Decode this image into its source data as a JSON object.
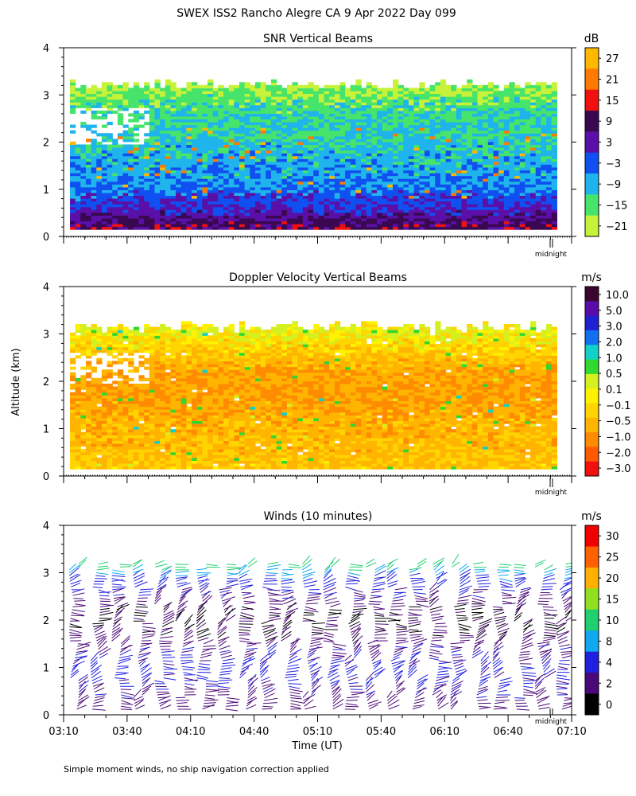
{
  "header": {
    "title": "SWEX ISS2 Rancho Alegre CA   9 Apr 2022 Day 099"
  },
  "footer": {
    "note": "Simple moment winds, no ship navigation correction applied"
  },
  "axes": {
    "ylabel": "Altitude (km)",
    "xlabel": "Time (UT)",
    "y_ticks": [
      "0",
      "1",
      "2",
      "3",
      "4"
    ],
    "x_ticks": [
      "03:10",
      "03:40",
      "04:10",
      "04:40",
      "05:10",
      "05:40",
      "06:10",
      "06:40",
      "07:10"
    ],
    "midnight_label": "midnight"
  },
  "colors": {
    "snr_scale": [
      "#c8f23a",
      "#46e46a",
      "#20b4ec",
      "#1050f0",
      "#5a10a8",
      "#3a0850",
      "#f01010",
      "#ff7a00",
      "#ffb800"
    ],
    "vel_scale": [
      "#f01010",
      "#ff5a00",
      "#ff8c00",
      "#ffb400",
      "#ffd400",
      "#fff200",
      "#d4f020",
      "#30d830",
      "#10d0c8",
      "#1070f0",
      "#2020d0",
      "#5a0ca8",
      "#3a0630"
    ],
    "wind_scale": [
      "#000000",
      "#4a0878",
      "#2020e0",
      "#10a8f0",
      "#20d070",
      "#90e020",
      "#ffb000",
      "#ff6000",
      "#f00000"
    ]
  },
  "chart_data": [
    {
      "type": "heatmap",
      "title": "SNR Vertical Beams",
      "units": "dB",
      "xlabel": "",
      "ylabel": "Altitude (km)",
      "xlim": [
        "03:10",
        "07:10"
      ],
      "ylim": [
        0,
        4
      ],
      "colorbar_ticks": [
        "27",
        "21",
        "15",
        "9",
        "3",
        "−3",
        "−9",
        "−15",
        "−21"
      ],
      "profile": {
        "altitude_km": [
          0.2,
          0.4,
          0.6,
          0.8,
          1.0,
          1.2,
          1.4,
          1.6,
          1.8,
          2.0,
          2.2,
          2.4,
          2.6,
          2.8,
          3.0,
          3.2
        ],
        "snr_db": [
          9,
          5,
          0,
          -2,
          -5,
          -7,
          -8,
          -9,
          -10,
          -11,
          -11,
          -12,
          -13,
          -15,
          -17,
          -20
        ]
      },
      "echo_top_km": 3.2
    },
    {
      "type": "heatmap",
      "title": "Doppler Velocity Vertical Beams",
      "units": "m/s",
      "xlabel": "",
      "ylabel": "Altitude (km)",
      "xlim": [
        "03:10",
        "07:10"
      ],
      "ylim": [
        0,
        4
      ],
      "colorbar_ticks": [
        "10.0",
        "5.0",
        "3.0",
        "2.0",
        "1.0",
        "0.5",
        "0.1",
        "−0.1",
        "−0.5",
        "−1.0",
        "−2.0",
        "−3.0"
      ],
      "profile": {
        "altitude_km": [
          0.2,
          0.6,
          1.0,
          1.4,
          1.8,
          2.2,
          2.6,
          3.0
        ],
        "velocity_ms": [
          -0.5,
          -0.6,
          -0.7,
          -0.9,
          -1.0,
          -0.9,
          -0.4,
          0.1
        ]
      },
      "echo_top_km": 3.1
    },
    {
      "type": "scatter",
      "title": "Winds (10 minutes)",
      "units": "m/s",
      "xlabel": "Time (UT)",
      "ylabel": "Altitude (km)",
      "xlim": [
        "03:10",
        "07:10"
      ],
      "ylim": [
        0,
        4
      ],
      "colorbar_ticks": [
        "30",
        "25",
        "20",
        "15",
        "10",
        "8",
        "4",
        "2",
        "0"
      ],
      "interval_minutes": 10,
      "profile_count": 24,
      "profile": {
        "altitude_km": [
          0.3,
          0.6,
          0.9,
          1.2,
          1.5,
          1.8,
          2.1,
          2.4,
          2.7,
          3.0,
          3.3
        ],
        "speed_ms": [
          3,
          4,
          5,
          4,
          3,
          2,
          2,
          3,
          5,
          9,
          13
        ]
      }
    }
  ]
}
